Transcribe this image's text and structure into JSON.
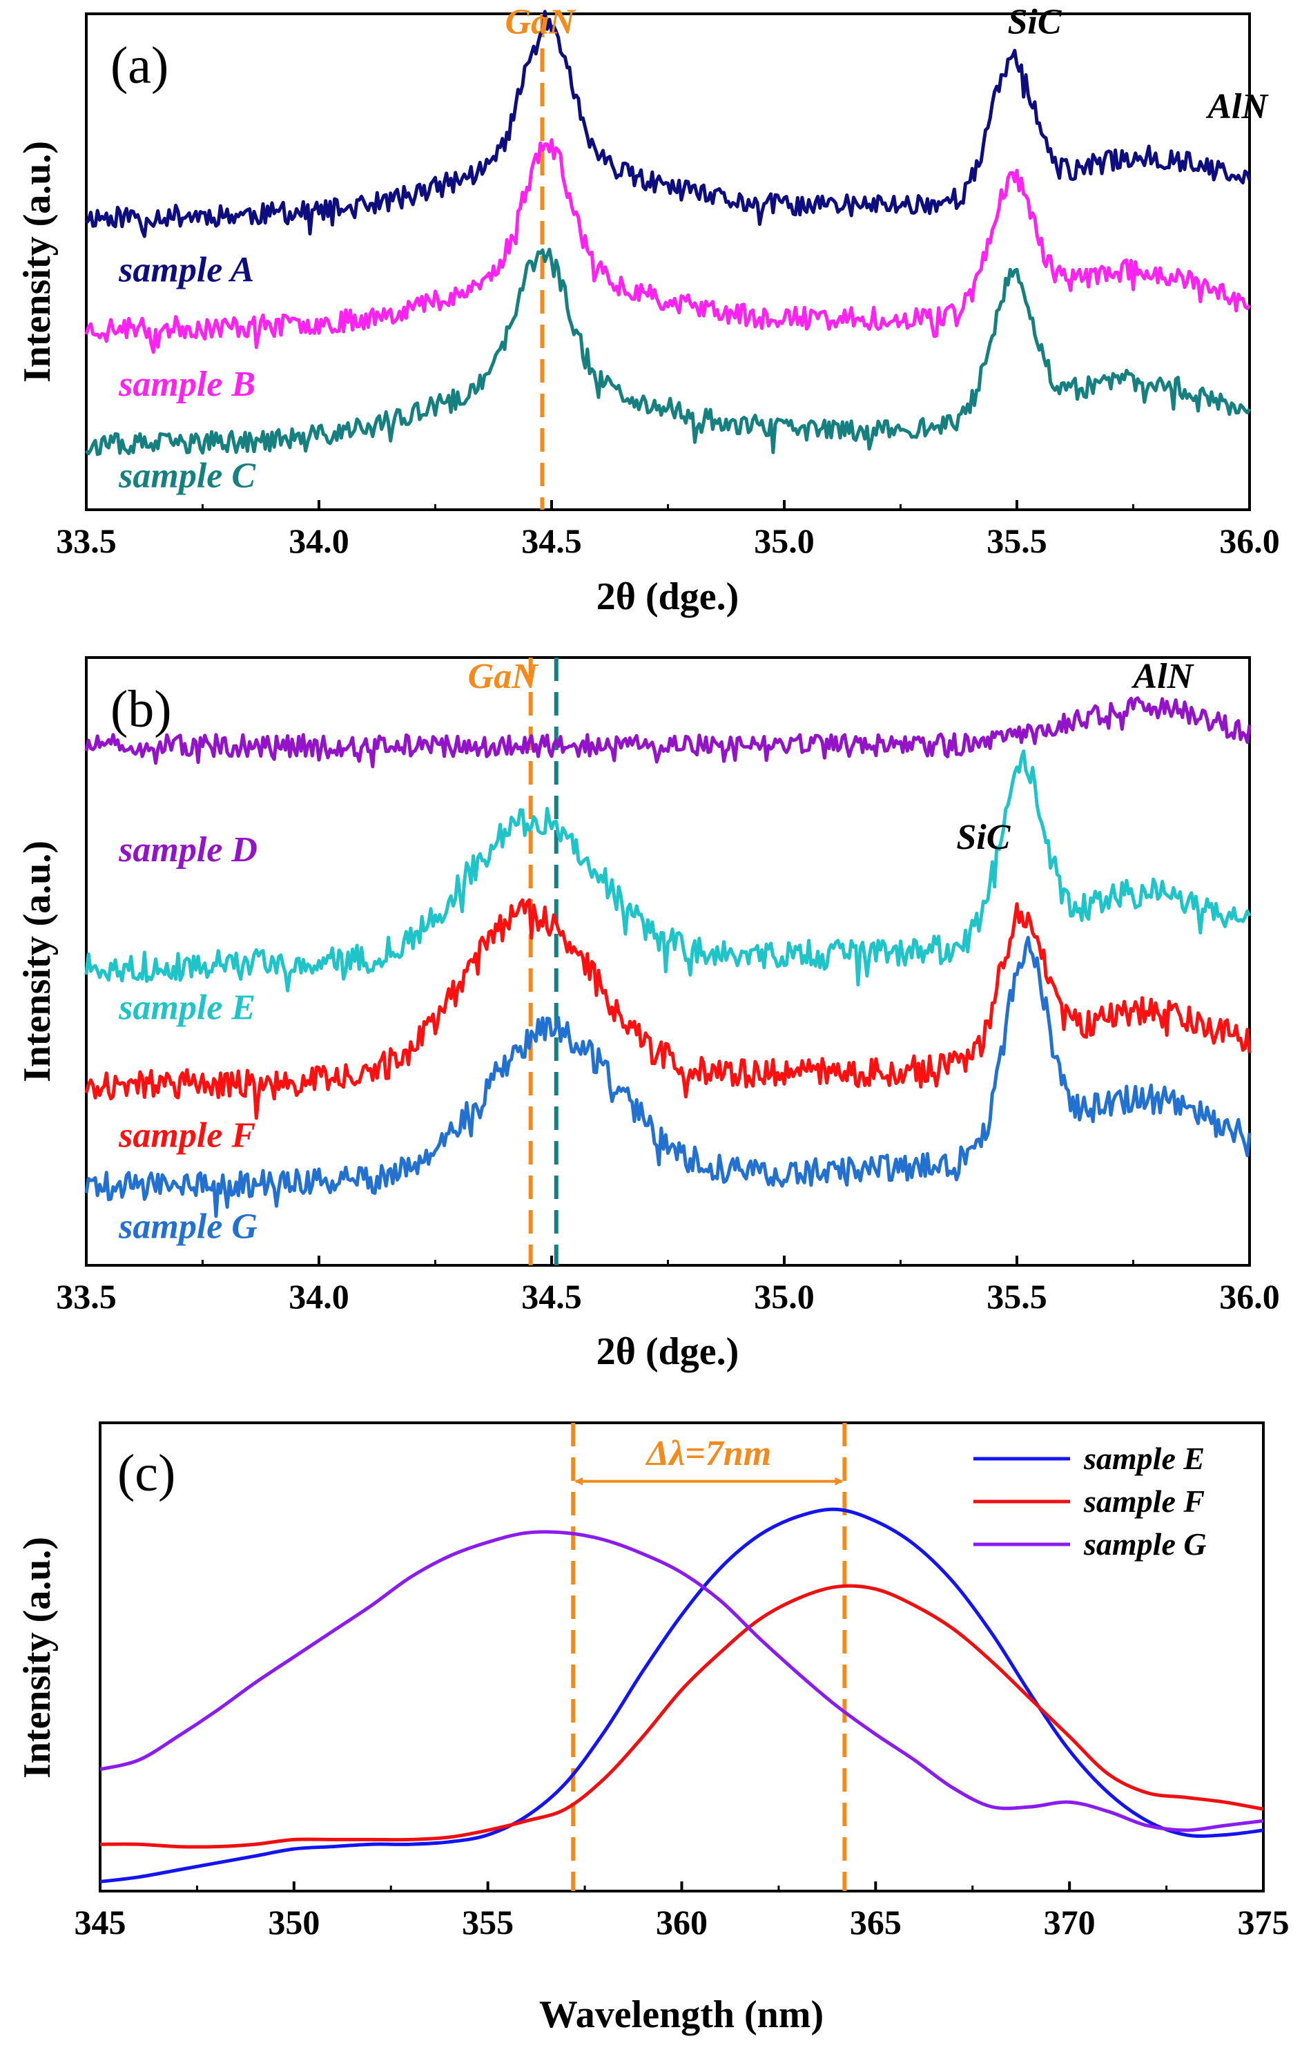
{
  "chart_data": [
    {
      "id": "a",
      "type": "line",
      "panel_label": "(a)",
      "xlabel": "2θ (dge.)",
      "ylabel": "Intensity (a.u.)",
      "xlim": [
        33.5,
        36.0
      ],
      "ylim": [
        0,
        10
      ],
      "x_ticks": [
        "33.5",
        "34.0",
        "34.5",
        "35.0",
        "35.5",
        "36.0"
      ],
      "grid": false,
      "annotations": [
        {
          "text": "GaN",
          "x": 34.4,
          "y": 9.6,
          "color": "#f28a1c"
        },
        {
          "text": "SiC",
          "x": 35.48,
          "y": 9.6,
          "color": "#000000"
        },
        {
          "text": "AlN",
          "x": 35.91,
          "y": 7.9,
          "color": "#000000"
        }
      ],
      "reference_lines": [
        {
          "x": 34.48,
          "color": "#f28a1c",
          "dashed": true
        }
      ],
      "series": [
        {
          "name": "sample A",
          "color": "#0d0d80",
          "base": 5.9,
          "slope": 0.35,
          "noise": 0.22,
          "label_y": 4.6,
          "label_x": 33.57,
          "seed": 11,
          "peaks": [
            {
              "c": 34.49,
              "w": 0.05,
              "h": 2.8
            },
            {
              "c": 34.49,
              "w": 0.2,
              "h": 1.0
            },
            {
              "c": 35.49,
              "w": 0.045,
              "h": 2.7
            },
            {
              "c": 35.77,
              "w": 0.17,
              "h": 0.9
            }
          ]
        },
        {
          "name": "sample B",
          "color": "#ff22f0",
          "base": 3.65,
          "slope": 0.3,
          "noise": 0.22,
          "label_y": 2.3,
          "label_x": 33.57,
          "seed": 23,
          "peaks": [
            {
              "c": 34.49,
              "w": 0.05,
              "h": 2.6
            },
            {
              "c": 34.49,
              "w": 0.2,
              "h": 1.0
            },
            {
              "c": 35.49,
              "w": 0.045,
              "h": 2.5
            },
            {
              "c": 35.74,
              "w": 0.17,
              "h": 0.9
            }
          ]
        },
        {
          "name": "sample C",
          "color": "#167f80",
          "base": 1.3,
          "slope": 0.45,
          "noise": 0.22,
          "label_y": 0.45,
          "label_x": 33.57,
          "seed": 37,
          "peaks": [
            {
              "c": 34.48,
              "w": 0.055,
              "h": 2.6
            },
            {
              "c": 34.48,
              "w": 0.22,
              "h": 1.1
            },
            {
              "c": 35.49,
              "w": 0.045,
              "h": 2.7
            },
            {
              "c": 35.74,
              "w": 0.17,
              "h": 0.9
            }
          ]
        }
      ]
    },
    {
      "id": "b",
      "type": "line",
      "panel_label": "(b)",
      "xlabel": "2θ (dge.)",
      "ylabel": "Intensity (a.u.)",
      "xlim": [
        33.5,
        36.0
      ],
      "ylim": [
        0,
        10
      ],
      "x_ticks": [
        "33.5",
        "34.0",
        "34.5",
        "35.0",
        "35.5",
        "36.0"
      ],
      "grid": false,
      "annotations": [
        {
          "text": "GaN",
          "x": 34.32,
          "y": 9.5,
          "color": "#f28a1c"
        },
        {
          "text": "AlN",
          "x": 35.75,
          "y": 9.5,
          "color": "#000000"
        },
        {
          "text": "SiC",
          "x": 35.37,
          "y": 6.85,
          "color": "#000000"
        }
      ],
      "reference_lines": [
        {
          "x": 34.455,
          "color": "#f28a1c",
          "dashed": true
        },
        {
          "x": 34.51,
          "color": "#167f80",
          "dashed": true
        }
      ],
      "series": [
        {
          "name": "sample D",
          "color": "#9314c8",
          "base": 8.55,
          "slope": 0.0,
          "noise": 0.18,
          "label_y": 6.65,
          "label_x": 33.57,
          "seed": 51,
          "peaks": [
            {
              "c": 35.77,
              "w": 0.15,
              "h": 0.65
            }
          ]
        },
        {
          "name": "sample E",
          "color": "#1fc4c8",
          "base": 4.9,
          "slope": 0.35,
          "noise": 0.24,
          "label_y": 4.05,
          "label_x": 33.57,
          "seed": 63,
          "peaks": [
            {
              "c": 34.46,
              "w": 0.14,
              "h": 2.3
            },
            {
              "c": 35.51,
              "w": 0.045,
              "h": 2.9
            },
            {
              "c": 35.77,
              "w": 0.17,
              "h": 0.9
            }
          ]
        },
        {
          "name": "sample F",
          "color": "#ff1010",
          "base": 2.95,
          "slope": 0.35,
          "noise": 0.24,
          "label_y": 1.95,
          "label_x": 33.57,
          "seed": 77,
          "peaks": [
            {
              "c": 34.45,
              "w": 0.14,
              "h": 2.7
            },
            {
              "c": 35.51,
              "w": 0.045,
              "h": 2.3
            },
            {
              "c": 35.77,
              "w": 0.17,
              "h": 0.9
            }
          ]
        },
        {
          "name": "sample G",
          "color": "#2270d0",
          "base": 1.3,
          "slope": 0.4,
          "noise": 0.24,
          "label_y": 0.45,
          "label_x": 33.57,
          "seed": 89,
          "peaks": [
            {
              "c": 34.5,
              "w": 0.14,
              "h": 2.4
            },
            {
              "c": 35.52,
              "w": 0.045,
              "h": 3.2
            },
            {
              "c": 35.76,
              "w": 0.17,
              "h": 1.1
            }
          ]
        }
      ]
    },
    {
      "id": "c",
      "type": "line",
      "panel_label": "(c)",
      "xlabel": "Wavelength (nm)",
      "ylabel": "Intensity (a.u.)",
      "xlim": [
        345,
        375
      ],
      "ylim": [
        0,
        10
      ],
      "x_ticks": [
        "345",
        "350",
        "355",
        "360",
        "365",
        "370",
        "375"
      ],
      "grid": false,
      "legend": {
        "position": "top-right",
        "entries": [
          "sample E",
          "sample F",
          "sample G"
        ]
      },
      "annotations": [
        {
          "text": "Δλ=7nm",
          "x": 360.7,
          "y": 9.1,
          "color": "#f28a1c"
        }
      ],
      "reference_lines": [
        {
          "x": 357.2,
          "color": "#f28a1c",
          "dashed": true
        },
        {
          "x": 364.2,
          "color": "#f28a1c",
          "dashed": true
        }
      ],
      "arrow": {
        "x1": 357.2,
        "x2": 364.2,
        "y": 8.75,
        "color": "#f28a1c"
      },
      "series": [
        {
          "name": "sample E",
          "color": "#1414f0",
          "x": [
            345,
            346,
            347,
            348,
            349,
            350,
            351,
            352,
            353,
            354,
            355,
            356,
            357,
            358,
            359,
            360,
            361,
            362,
            363,
            364,
            365,
            366,
            367,
            368,
            369,
            370,
            371,
            372,
            373,
            374,
            375
          ],
          "y": [
            0.2,
            0.3,
            0.45,
            0.6,
            0.75,
            0.9,
            0.95,
            1.0,
            1.0,
            1.05,
            1.2,
            1.6,
            2.3,
            3.4,
            4.7,
            5.9,
            6.9,
            7.6,
            8.0,
            8.15,
            7.9,
            7.4,
            6.6,
            5.5,
            4.2,
            3.0,
            2.1,
            1.5,
            1.2,
            1.2,
            1.3
          ]
        },
        {
          "name": "sample F",
          "color": "#ee1010",
          "x": [
            345,
            346,
            347,
            348,
            349,
            350,
            351,
            352,
            353,
            354,
            355,
            356,
            357,
            358,
            359,
            360,
            361,
            362,
            363,
            364,
            365,
            366,
            367,
            368,
            369,
            370,
            371,
            372,
            373,
            374,
            375
          ],
          "y": [
            1.0,
            1.0,
            0.95,
            0.95,
            1.0,
            1.1,
            1.1,
            1.1,
            1.1,
            1.15,
            1.3,
            1.5,
            1.75,
            2.4,
            3.3,
            4.3,
            5.1,
            5.8,
            6.25,
            6.5,
            6.45,
            6.1,
            5.6,
            4.9,
            4.1,
            3.3,
            2.5,
            2.1,
            2.0,
            1.9,
            1.75
          ]
        },
        {
          "name": "sample G",
          "color": "#8a1cf0",
          "x": [
            345,
            346,
            347,
            348,
            349,
            350,
            351,
            352,
            353,
            354,
            355,
            356,
            357,
            358,
            359,
            360,
            361,
            362,
            363,
            364,
            365,
            366,
            367,
            368,
            369,
            370,
            371,
            372,
            373,
            374,
            375
          ],
          "y": [
            2.6,
            2.8,
            3.3,
            3.85,
            4.45,
            5.0,
            5.55,
            6.1,
            6.7,
            7.15,
            7.45,
            7.65,
            7.65,
            7.5,
            7.2,
            6.8,
            6.2,
            5.4,
            4.65,
            3.95,
            3.35,
            2.8,
            2.2,
            1.8,
            1.8,
            1.9,
            1.7,
            1.4,
            1.3,
            1.4,
            1.5
          ]
        }
      ]
    }
  ]
}
